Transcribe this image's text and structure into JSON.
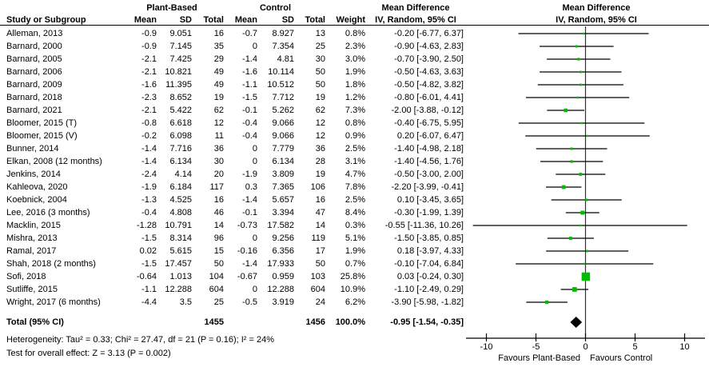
{
  "table_header": {
    "group_plant": "Plant-Based",
    "group_control": "Control",
    "col_study": "Study or Subgroup",
    "col_mean_pb": "Mean",
    "col_sd_pb": "SD",
    "col_total_pb": "Total",
    "col_mean_c": "Mean",
    "col_sd_c": "SD",
    "col_total_c": "Total",
    "col_weight": "Weight",
    "md_col_line1": "Mean Difference",
    "md_col_line2": "IV, Random, 95% CI",
    "plot_line1": "Mean Difference",
    "plot_line2": "IV, Random, 95% CI"
  },
  "footer": {
    "heterogeneity": "Heterogeneity: Tau² = 0.33; Chi² = 27.47, df = 21 (P = 0.16); I² = 24%",
    "overall_effect": "Test for overall effect: Z = 3.13 (P = 0.002)",
    "favours_left": "Favours Plant-Based",
    "favours_right": "Favours Control"
  },
  "chart_data": {
    "type": "forest",
    "x_axis": {
      "ticks": [
        -10,
        -5,
        0,
        5,
        10
      ],
      "range": [
        -12.1,
        12.1
      ]
    },
    "colors": {
      "marker": "#00bd00",
      "diamond": "#000000",
      "ci_line": "#000000",
      "zero_line": "#333333"
    },
    "studies": [
      {
        "name": "Alleman, 2013",
        "pb_mean": "-0.9",
        "pb_sd": "9.051",
        "pb_total": "16",
        "c_mean": "-0.7",
        "c_sd": "8.927",
        "c_total": "13",
        "weight": "0.8%",
        "weight_val": 0.8,
        "md": -0.2,
        "ci_low": -6.77,
        "ci_high": 6.37,
        "md_label": "-0.20 [-6.77, 6.37]"
      },
      {
        "name": "Barnard, 2000",
        "pb_mean": "-0.9",
        "pb_sd": "7.145",
        "pb_total": "35",
        "c_mean": "0",
        "c_sd": "7.354",
        "c_total": "25",
        "weight": "2.3%",
        "weight_val": 2.3,
        "md": -0.9,
        "ci_low": -4.63,
        "ci_high": 2.83,
        "md_label": "-0.90 [-4.63, 2.83]"
      },
      {
        "name": "Barnard, 2005",
        "pb_mean": "-2.1",
        "pb_sd": "7.425",
        "pb_total": "29",
        "c_mean": "-1.4",
        "c_sd": "4.81",
        "c_total": "30",
        "weight": "3.0%",
        "weight_val": 3.0,
        "md": -0.7,
        "ci_low": -3.9,
        "ci_high": 2.5,
        "md_label": "-0.70 [-3.90, 2.50]"
      },
      {
        "name": "Barnard, 2006",
        "pb_mean": "-2.1",
        "pb_sd": "10.821",
        "pb_total": "49",
        "c_mean": "-1.6",
        "c_sd": "10.114",
        "c_total": "50",
        "weight": "1.9%",
        "weight_val": 1.9,
        "md": -0.5,
        "ci_low": -4.63,
        "ci_high": 3.63,
        "md_label": "-0.50 [-4.63, 3.63]"
      },
      {
        "name": "Barnard, 2009",
        "pb_mean": "-1.6",
        "pb_sd": "11.395",
        "pb_total": "49",
        "c_mean": "-1.1",
        "c_sd": "10.512",
        "c_total": "50",
        "weight": "1.8%",
        "weight_val": 1.8,
        "md": -0.5,
        "ci_low": -4.82,
        "ci_high": 3.82,
        "md_label": "-0.50 [-4.82, 3.82]"
      },
      {
        "name": "Barnard, 2018",
        "pb_mean": "-2.3",
        "pb_sd": "8.652",
        "pb_total": "19",
        "c_mean": "-1.5",
        "c_sd": "7.712",
        "c_total": "19",
        "weight": "1.2%",
        "weight_val": 1.2,
        "md": -0.8,
        "ci_low": -6.01,
        "ci_high": 4.41,
        "md_label": "-0.80 [-6.01, 4.41]"
      },
      {
        "name": "Barnard, 2021",
        "pb_mean": "-2.1",
        "pb_sd": "5.422",
        "pb_total": "62",
        "c_mean": "-0.1",
        "c_sd": "5.262",
        "c_total": "62",
        "weight": "7.3%",
        "weight_val": 7.3,
        "md": -2.0,
        "ci_low": -3.88,
        "ci_high": -0.12,
        "md_label": "-2.00 [-3.88, -0.12]"
      },
      {
        "name": "Bloomer, 2015 (T)",
        "pb_mean": "-0.8",
        "pb_sd": "6.618",
        "pb_total": "12",
        "c_mean": "-0.4",
        "c_sd": "9.066",
        "c_total": "12",
        "weight": "0.8%",
        "weight_val": 0.8,
        "md": -0.4,
        "ci_low": -6.75,
        "ci_high": 5.95,
        "md_label": "-0.40 [-6.75, 5.95]"
      },
      {
        "name": "Bloomer, 2015 (V)",
        "pb_mean": "-0.2",
        "pb_sd": "6.098",
        "pb_total": "11",
        "c_mean": "-0.4",
        "c_sd": "9.066",
        "c_total": "12",
        "weight": "0.9%",
        "weight_val": 0.9,
        "md": 0.2,
        "ci_low": -6.07,
        "ci_high": 6.47,
        "md_label": "0.20 [-6.07, 6.47]"
      },
      {
        "name": "Bunner, 2014",
        "pb_mean": "-1.4",
        "pb_sd": "7.716",
        "pb_total": "36",
        "c_mean": "0",
        "c_sd": "7.779",
        "c_total": "36",
        "weight": "2.5%",
        "weight_val": 2.5,
        "md": -1.4,
        "ci_low": -4.98,
        "ci_high": 2.18,
        "md_label": "-1.40 [-4.98, 2.18]"
      },
      {
        "name": "Elkan, 2008 (12 months)",
        "pb_mean": "-1.4",
        "pb_sd": "6.134",
        "pb_total": "30",
        "c_mean": "0",
        "c_sd": "6.134",
        "c_total": "28",
        "weight": "3.1%",
        "weight_val": 3.1,
        "md": -1.4,
        "ci_low": -4.56,
        "ci_high": 1.76,
        "md_label": "-1.40 [-4.56, 1.76]"
      },
      {
        "name": "Jenkins, 2014",
        "pb_mean": "-2.4",
        "pb_sd": "4.14",
        "pb_total": "20",
        "c_mean": "-1.9",
        "c_sd": "3.809",
        "c_total": "19",
        "weight": "4.7%",
        "weight_val": 4.7,
        "md": -0.5,
        "ci_low": -3.0,
        "ci_high": 2.0,
        "md_label": "-0.50 [-3.00, 2.00]"
      },
      {
        "name": "Kahleova, 2020",
        "pb_mean": "-1.9",
        "pb_sd": "6.184",
        "pb_total": "117",
        "c_mean": "0.3",
        "c_sd": "7.365",
        "c_total": "106",
        "weight": "7.8%",
        "weight_val": 7.8,
        "md": -2.2,
        "ci_low": -3.99,
        "ci_high": -0.41,
        "md_label": "-2.20 [-3.99, -0.41]"
      },
      {
        "name": "Koebnick, 2004",
        "pb_mean": "-1.3",
        "pb_sd": "4.525",
        "pb_total": "16",
        "c_mean": "-1.4",
        "c_sd": "5.657",
        "c_total": "16",
        "weight": "2.5%",
        "weight_val": 2.5,
        "md": 0.1,
        "ci_low": -3.45,
        "ci_high": 3.65,
        "md_label": "0.10 [-3.45, 3.65]"
      },
      {
        "name": "Lee, 2016 (3 months)",
        "pb_mean": "-0.4",
        "pb_sd": "4.808",
        "pb_total": "46",
        "c_mean": "-0.1",
        "c_sd": "3.394",
        "c_total": "47",
        "weight": "8.4%",
        "weight_val": 8.4,
        "md": -0.3,
        "ci_low": -1.99,
        "ci_high": 1.39,
        "md_label": "-0.30 [-1.99, 1.39]"
      },
      {
        "name": "Macklin, 2015",
        "pb_mean": "-1.28",
        "pb_sd": "10.791",
        "pb_total": "14",
        "c_mean": "-0.73",
        "c_sd": "17.582",
        "c_total": "14",
        "weight": "0.3%",
        "weight_val": 0.3,
        "md": -0.55,
        "ci_low": -11.36,
        "ci_high": 10.26,
        "md_label": "-0.55 [-11.36, 10.26]"
      },
      {
        "name": "Mishra, 2013",
        "pb_mean": "-1.5",
        "pb_sd": "8.314",
        "pb_total": "96",
        "c_mean": "0",
        "c_sd": "9.256",
        "c_total": "119",
        "weight": "5.1%",
        "weight_val": 5.1,
        "md": -1.5,
        "ci_low": -3.85,
        "ci_high": 0.85,
        "md_label": "-1.50 [-3.85, 0.85]"
      },
      {
        "name": "Ramal, 2017",
        "pb_mean": "0.02",
        "pb_sd": "5.615",
        "pb_total": "15",
        "c_mean": "-0.16",
        "c_sd": "6.356",
        "c_total": "17",
        "weight": "1.9%",
        "weight_val": 1.9,
        "md": 0.18,
        "ci_low": -3.97,
        "ci_high": 4.33,
        "md_label": "0.18 [-3.97, 4.33]"
      },
      {
        "name": "Shah, 2018 (2 months)",
        "pb_mean": "-1.5",
        "pb_sd": "17.457",
        "pb_total": "50",
        "c_mean": "-1.4",
        "c_sd": "17.933",
        "c_total": "50",
        "weight": "0.7%",
        "weight_val": 0.7,
        "md": -0.1,
        "ci_low": -7.04,
        "ci_high": 6.84,
        "md_label": "-0.10 [-7.04, 6.84]"
      },
      {
        "name": "Sofi, 2018",
        "pb_mean": "-0.64",
        "pb_sd": "1.013",
        "pb_total": "104",
        "c_mean": "-0.67",
        "c_sd": "0.959",
        "c_total": "103",
        "weight": "25.8%",
        "weight_val": 25.8,
        "md": 0.03,
        "ci_low": -0.24,
        "ci_high": 0.3,
        "md_label": "0.03 [-0.24, 0.30]"
      },
      {
        "name": "Sutliffe, 2015",
        "pb_mean": "-1.1",
        "pb_sd": "12.288",
        "pb_total": "604",
        "c_mean": "0",
        "c_sd": "12.288",
        "c_total": "604",
        "weight": "10.9%",
        "weight_val": 10.9,
        "md": -1.1,
        "ci_low": -2.49,
        "ci_high": 0.29,
        "md_label": "-1.10 [-2.49, 0.29]"
      },
      {
        "name": "Wright, 2017 (6 months)",
        "pb_mean": "-4.4",
        "pb_sd": "3.5",
        "pb_total": "25",
        "c_mean": "-0.5",
        "c_sd": "3.919",
        "c_total": "24",
        "weight": "6.2%",
        "weight_val": 6.2,
        "md": -3.9,
        "ci_low": -5.98,
        "ci_high": -1.82,
        "md_label": "-3.90 [-5.98, -1.82]"
      }
    ],
    "total": {
      "label": "Total (95% CI)",
      "pb_total": "1455",
      "c_total": "1456",
      "weight": "100.0%",
      "md": -0.95,
      "ci_low": -1.54,
      "ci_high": -0.35,
      "md_label": "-0.95 [-1.54, -0.35]"
    }
  }
}
